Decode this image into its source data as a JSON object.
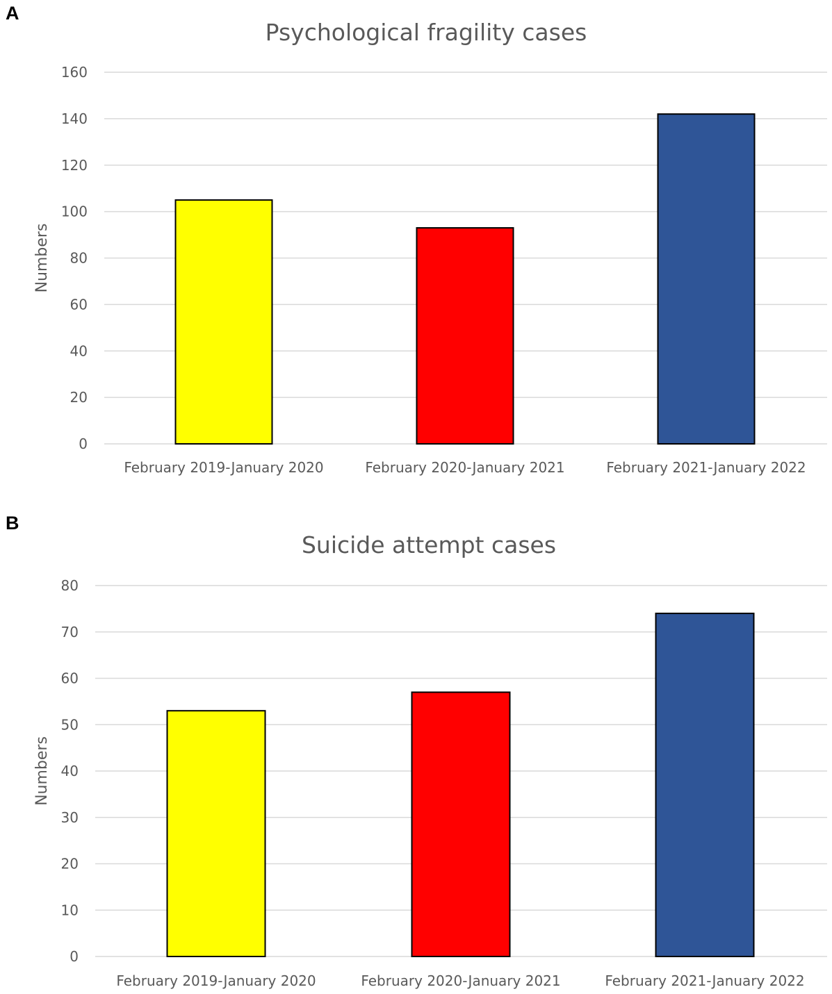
{
  "panels": [
    {
      "letter": "A",
      "chart_data": {
        "type": "bar",
        "title": "Psychological fragility cases",
        "xlabel": "",
        "ylabel": "Numbers",
        "ylim": [
          0,
          160
        ],
        "yticks": [
          0,
          20,
          40,
          60,
          80,
          100,
          120,
          140,
          160
        ],
        "categories": [
          "February 2019-January 2020",
          "February 2020-January 2021",
          "February 2021-January 2022"
        ],
        "values": [
          105,
          93,
          142
        ],
        "colors": [
          "#ffff00",
          "#ff0000",
          "#2f5597"
        ],
        "grid": true
      }
    },
    {
      "letter": "B",
      "chart_data": {
        "type": "bar",
        "title": "Suicide attempt cases",
        "xlabel": "",
        "ylabel": "Numbers",
        "ylim": [
          0,
          80
        ],
        "yticks": [
          0,
          10,
          20,
          30,
          40,
          50,
          60,
          70,
          80
        ],
        "categories": [
          "February 2019-January 2020",
          "February 2020-January 2021",
          "February 2021-January 2022"
        ],
        "values": [
          53,
          57,
          74
        ],
        "colors": [
          "#ffff00",
          "#ff0000",
          "#2f5597"
        ],
        "grid": true
      }
    }
  ]
}
